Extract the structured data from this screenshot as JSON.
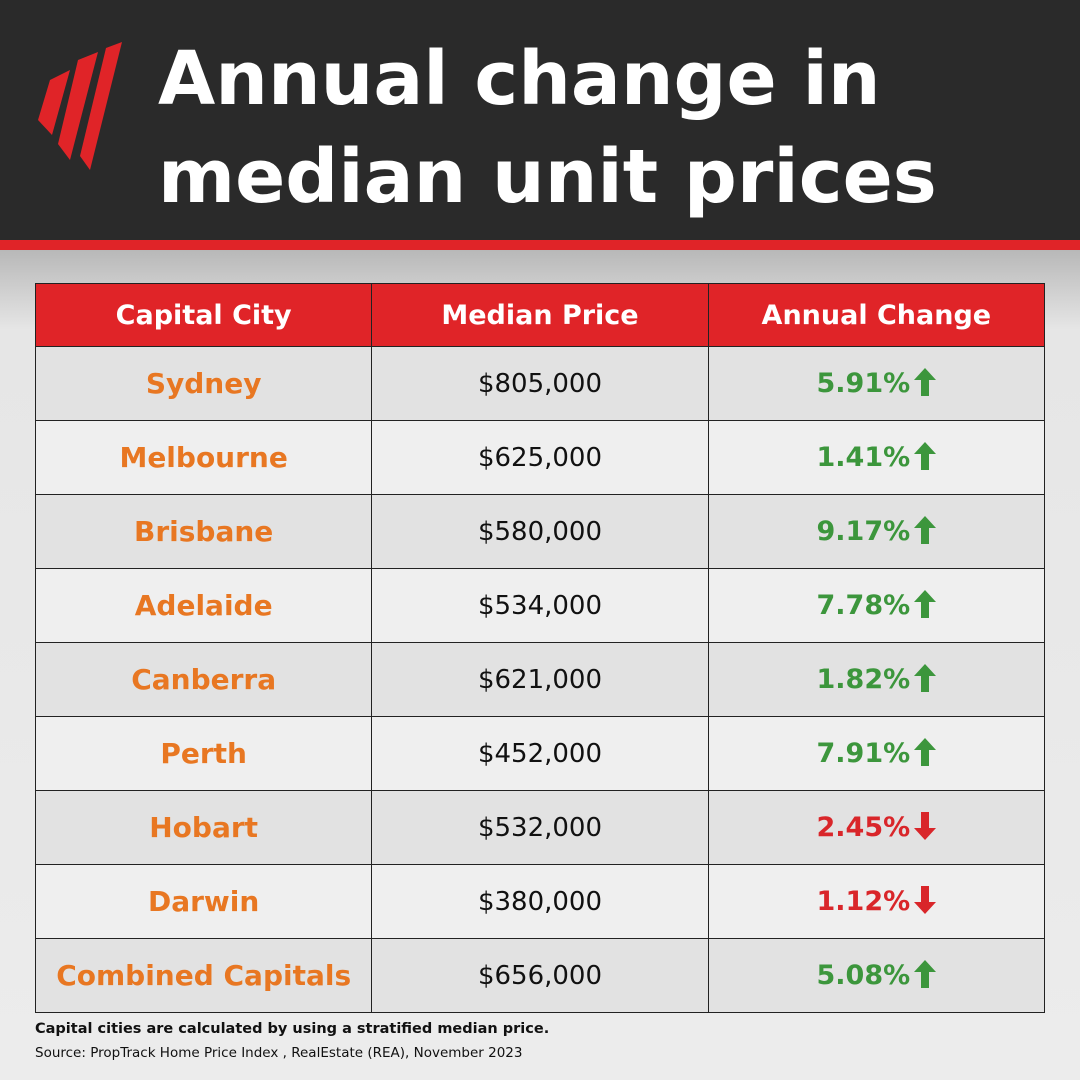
{
  "header": {
    "title": [
      "Annual change in",
      "median unit prices"
    ]
  },
  "table": {
    "columns": [
      "Capital City",
      "Median Price",
      "Annual Change"
    ],
    "rows": [
      {
        "city": "Sydney",
        "price": "$805,000",
        "change": "5.91%",
        "trend": "up"
      },
      {
        "city": "Melbourne",
        "price": "$625,000",
        "change": "1.41%",
        "trend": "up"
      },
      {
        "city": "Brisbane",
        "price": "$580,000",
        "change": "9.17%",
        "trend": "up"
      },
      {
        "city": "Adelaide",
        "price": "$534,000",
        "change": "7.78%",
        "trend": "up"
      },
      {
        "city": "Canberra",
        "price": "$621,000",
        "change": "1.82%",
        "trend": "up"
      },
      {
        "city": "Perth",
        "price": "$452,000",
        "change": "7.91%",
        "trend": "up"
      },
      {
        "city": "Hobart",
        "price": "$532,000",
        "change": "2.45%",
        "trend": "down"
      },
      {
        "city": "Darwin",
        "price": "$380,000",
        "change": "1.12%",
        "trend": "down"
      },
      {
        "city": "Combined Capitals",
        "price": "$656,000",
        "change": "5.08%",
        "trend": "up"
      }
    ]
  },
  "footer": {
    "note": "Capital cities are calculated by using a stratified median price.",
    "source": "Source: PropTrack Home Price Index , RealEstate (REA), November 2023"
  }
}
